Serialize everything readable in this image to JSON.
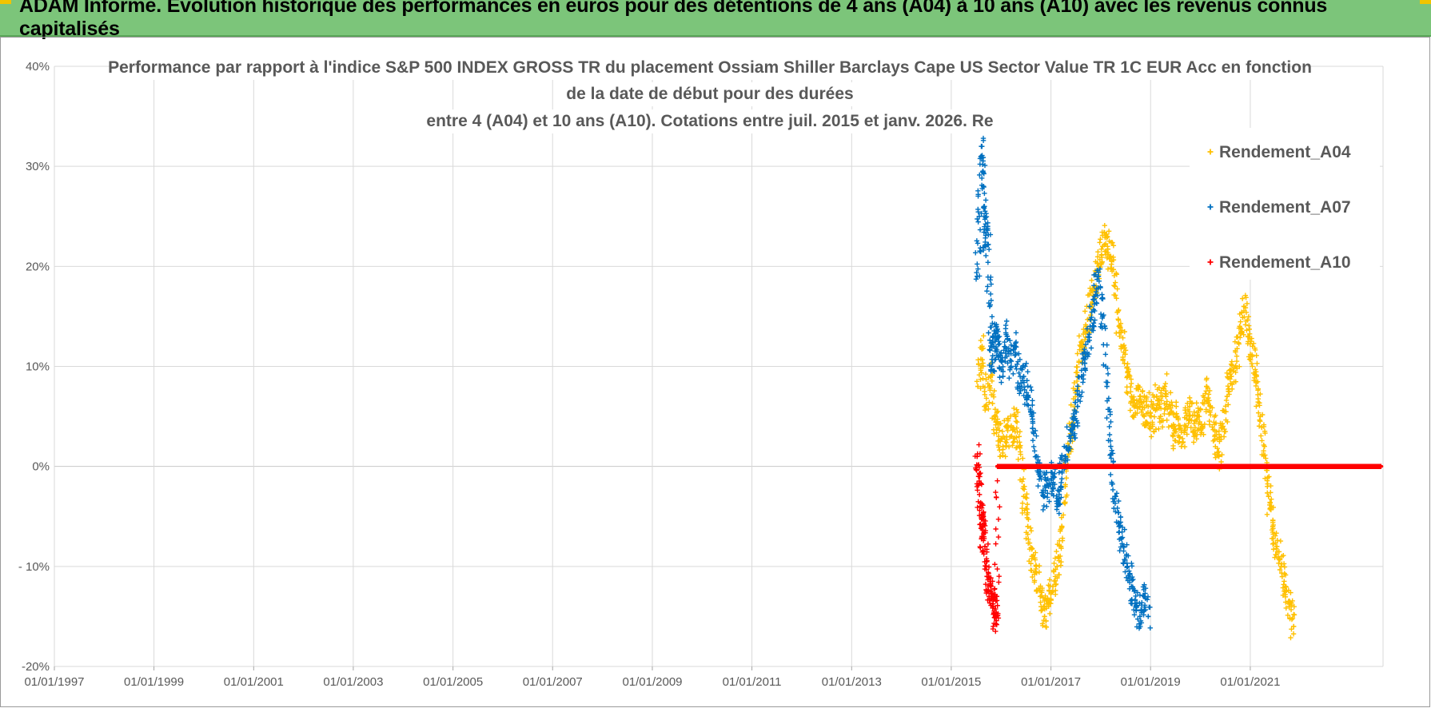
{
  "banner": {
    "title": "ADAM Informe. Evolution historique des performances en euros pour des détentions de 4 ans (A04) à 10 ans (A10) avec les revenus connus capitalisés"
  },
  "colors": {
    "banner": "#7cc57a",
    "A04": "#ffc000",
    "A07": "#0070c0",
    "A10": "#ff0000",
    "grid": "#d9d9d9"
  },
  "chart_data": {
    "type": "scatter",
    "title_lines": [
      "Performance par rapport à l'indice S&P 500 INDEX GROSS TR  du placement Ossiam Shiller Barclays Cape US Sector Value TR 1C EUR Acc en fonction",
      "de la date de début pour des durées",
      "entre 4 (A04) et 10 ans (A10). Cotations entre juil. 2015 et janv. 2026. Re"
    ],
    "xlabel": "",
    "ylabel": "",
    "x_range": [
      "1997-01-01",
      "2023-09-01"
    ],
    "ylim": [
      -20,
      40
    ],
    "x_ticks": [
      "01/01/1997",
      "01/01/1999",
      "01/01/2001",
      "01/01/2003",
      "01/01/2005",
      "01/01/2007",
      "01/01/2009",
      "01/01/2011",
      "01/01/2013",
      "01/01/2015",
      "01/01/2017",
      "01/01/2019",
      "01/01/2021"
    ],
    "y_ticks": [
      {
        "value": 40,
        "label": "40%"
      },
      {
        "value": 30,
        "label": "30%"
      },
      {
        "value": 20,
        "label": "20%"
      },
      {
        "value": 10,
        "label": "10%"
      },
      {
        "value": 0,
        "label": "0%"
      },
      {
        "value": -10,
        "label": "- 10%"
      },
      {
        "value": -20,
        "label": "-20%"
      }
    ],
    "grid": true,
    "legend_position": "top-right",
    "marker": "+",
    "series": [
      {
        "name": "Rendement_A04",
        "color": "#ffc000",
        "points": [
          [
            "2015-07-15",
            8
          ],
          [
            "2015-08-15",
            12
          ],
          [
            "2015-09-15",
            6
          ],
          [
            "2015-10-15",
            9
          ],
          [
            "2015-11-15",
            5
          ],
          [
            "2015-12-15",
            3
          ],
          [
            "2016-01-15",
            2
          ],
          [
            "2016-02-15",
            4
          ],
          [
            "2016-03-15",
            3
          ],
          [
            "2016-04-15",
            5
          ],
          [
            "2016-05-15",
            2
          ],
          [
            "2016-06-15",
            -3
          ],
          [
            "2016-07-15",
            -6
          ],
          [
            "2016-08-15",
            -9
          ],
          [
            "2016-09-15",
            -10
          ],
          [
            "2016-10-15",
            -13
          ],
          [
            "2016-11-15",
            -15
          ],
          [
            "2016-12-15",
            -14
          ],
          [
            "2017-01-15",
            -12
          ],
          [
            "2017-02-15",
            -10
          ],
          [
            "2017-03-15",
            -8
          ],
          [
            "2017-04-15",
            -2
          ],
          [
            "2017-05-15",
            2
          ],
          [
            "2017-06-15",
            5
          ],
          [
            "2017-07-15",
            9
          ],
          [
            "2017-08-15",
            12
          ],
          [
            "2017-09-15",
            14
          ],
          [
            "2017-10-15",
            16
          ],
          [
            "2017-11-15",
            18
          ],
          [
            "2017-12-15",
            20
          ],
          [
            "2018-01-15",
            22
          ],
          [
            "2018-02-15",
            23
          ],
          [
            "2018-03-15",
            21
          ],
          [
            "2018-04-15",
            18
          ],
          [
            "2018-05-15",
            14
          ],
          [
            "2018-06-15",
            12
          ],
          [
            "2018-07-15",
            9
          ],
          [
            "2018-08-15",
            7
          ],
          [
            "2018-09-15",
            6
          ],
          [
            "2018-10-15",
            7
          ],
          [
            "2018-11-15",
            5
          ],
          [
            "2018-12-15",
            6
          ],
          [
            "2019-01-15",
            4
          ],
          [
            "2019-02-15",
            7
          ],
          [
            "2019-03-15",
            5
          ],
          [
            "2019-04-15",
            8
          ],
          [
            "2019-05-15",
            6
          ],
          [
            "2019-06-15",
            3
          ],
          [
            "2019-07-15",
            5
          ],
          [
            "2019-08-15",
            2
          ],
          [
            "2019-09-15",
            4
          ],
          [
            "2019-10-15",
            6
          ],
          [
            "2019-11-15",
            3
          ],
          [
            "2019-12-15",
            5
          ],
          [
            "2020-01-15",
            4
          ],
          [
            "2020-02-15",
            8
          ],
          [
            "2020-03-15",
            6
          ],
          [
            "2020-04-15",
            3
          ],
          [
            "2020-05-15",
            1
          ],
          [
            "2020-06-15",
            4
          ],
          [
            "2020-07-15",
            7
          ],
          [
            "2020-08-15",
            9
          ],
          [
            "2020-09-15",
            10
          ],
          [
            "2020-10-15",
            14
          ],
          [
            "2020-11-15",
            16
          ],
          [
            "2020-12-15",
            13
          ],
          [
            "2021-01-15",
            11
          ],
          [
            "2021-02-15",
            9
          ],
          [
            "2021-03-15",
            5
          ],
          [
            "2021-04-15",
            2
          ],
          [
            "2021-05-15",
            -3
          ],
          [
            "2021-06-15",
            -6
          ],
          [
            "2021-07-15",
            -8
          ],
          [
            "2021-08-15",
            -10
          ],
          [
            "2021-09-15",
            -12
          ],
          [
            "2021-10-15",
            -14
          ],
          [
            "2021-11-15",
            -16
          ]
        ]
      },
      {
        "name": "Rendement_A07",
        "color": "#0070c0",
        "points": [
          [
            "2015-07-10",
            19
          ],
          [
            "2015-07-25",
            25
          ],
          [
            "2015-08-10",
            32
          ],
          [
            "2015-08-25",
            28
          ],
          [
            "2015-09-10",
            22
          ],
          [
            "2015-09-25",
            24
          ],
          [
            "2015-10-10",
            16
          ],
          [
            "2015-10-25",
            10
          ],
          [
            "2015-11-10",
            12
          ],
          [
            "2015-11-25",
            14
          ],
          [
            "2015-12-15",
            11
          ],
          [
            "2016-01-15",
            9
          ],
          [
            "2016-02-15",
            13
          ],
          [
            "2016-03-15",
            10
          ],
          [
            "2016-04-15",
            12
          ],
          [
            "2016-05-15",
            8
          ],
          [
            "2016-06-15",
            9
          ],
          [
            "2016-07-15",
            7
          ],
          [
            "2016-08-15",
            5
          ],
          [
            "2016-09-15",
            1
          ],
          [
            "2016-10-15",
            -1
          ],
          [
            "2016-11-15",
            -3
          ],
          [
            "2016-12-15",
            -2
          ],
          [
            "2017-01-15",
            -1
          ],
          [
            "2017-02-15",
            -4
          ],
          [
            "2017-03-15",
            -2
          ],
          [
            "2017-04-15",
            1
          ],
          [
            "2017-05-15",
            3
          ],
          [
            "2017-06-15",
            4
          ],
          [
            "2017-07-15",
            6
          ],
          [
            "2017-08-15",
            9
          ],
          [
            "2017-09-15",
            11
          ],
          [
            "2017-10-15",
            14
          ],
          [
            "2017-11-15",
            17
          ],
          [
            "2017-12-15",
            19
          ],
          [
            "2018-01-15",
            15
          ],
          [
            "2018-02-15",
            8
          ],
          [
            "2018-03-15",
            2
          ],
          [
            "2018-04-15",
            -3
          ],
          [
            "2018-05-15",
            -6
          ],
          [
            "2018-06-15",
            -8
          ],
          [
            "2018-07-15",
            -10
          ],
          [
            "2018-08-15",
            -12
          ],
          [
            "2018-09-15",
            -14
          ],
          [
            "2018-10-15",
            -15
          ],
          [
            "2018-11-15",
            -13
          ],
          [
            "2018-12-15",
            -15
          ]
        ]
      },
      {
        "name": "Rendement_A10",
        "color": "#ff0000",
        "points": [
          [
            "2015-07-10",
            1
          ],
          [
            "2015-07-20",
            -1
          ],
          [
            "2015-08-01",
            -4
          ],
          [
            "2015-08-15",
            -7
          ],
          [
            "2015-08-25",
            -5
          ],
          [
            "2015-09-05",
            -8
          ],
          [
            "2015-09-20",
            -11
          ],
          [
            "2015-10-05",
            -13
          ],
          [
            "2015-10-20",
            -12
          ],
          [
            "2015-11-05",
            -14
          ],
          [
            "2015-11-20",
            -15
          ],
          [
            "2015-12-01",
            -13
          ],
          [
            "2015-12-10",
            0
          ],
          [
            "2016-06-15",
            0
          ],
          [
            "2017-06-15",
            0
          ],
          [
            "2018-06-15",
            0
          ],
          [
            "2019-06-15",
            0
          ],
          [
            "2020-06-15",
            0
          ],
          [
            "2021-06-15",
            0
          ],
          [
            "2022-06-15",
            0
          ],
          [
            "2023-01-15",
            0
          ],
          [
            "2023-08-15",
            0
          ]
        ]
      }
    ]
  }
}
